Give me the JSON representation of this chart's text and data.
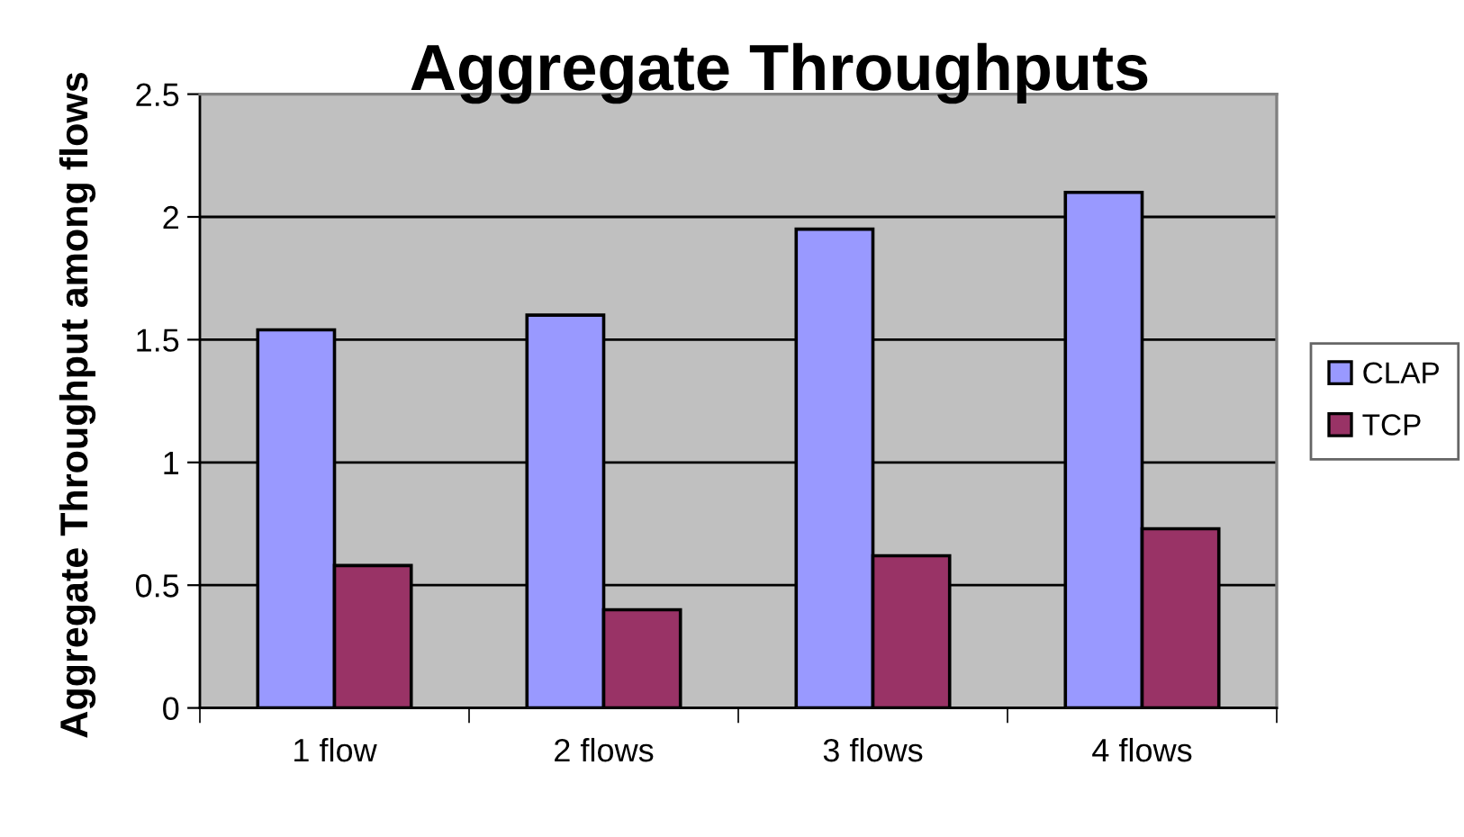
{
  "chart_data": {
    "type": "bar",
    "title": "Aggregate Throughputs",
    "ylabel": "Aggregate Throughput among flows",
    "categories": [
      "1 flow",
      "2 flows",
      "3 flows",
      "4 flows"
    ],
    "series": [
      {
        "name": "CLAP",
        "color": "#9999ff",
        "values": [
          1.54,
          1.6,
          1.95,
          2.1
        ]
      },
      {
        "name": "TCP",
        "color": "#993366",
        "values": [
          0.58,
          0.4,
          0.62,
          0.73
        ]
      }
    ],
    "ylim": [
      0,
      2.5
    ],
    "yticks": [
      0,
      0.5,
      1,
      1.5,
      2,
      2.5
    ],
    "grid": "y",
    "legend": "right"
  }
}
